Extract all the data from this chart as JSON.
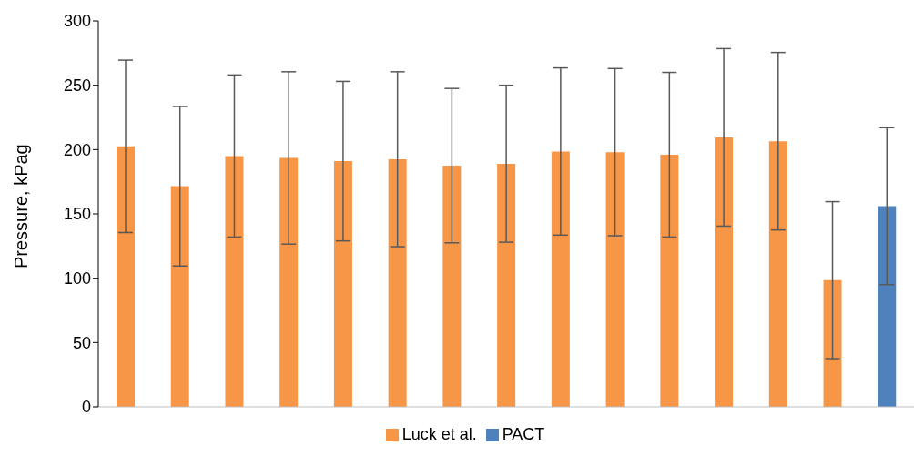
{
  "chart_data": {
    "type": "bar",
    "ylabel": "Pressure, kPag",
    "categories": [
      null,
      null,
      null,
      null,
      null,
      null,
      null,
      null,
      null,
      null,
      null,
      null,
      null,
      null,
      null
    ],
    "series": [
      {
        "name": "Luck et al.",
        "color": "#f79646",
        "values": [
          202.5,
          171.5,
          195,
          193.5,
          191,
          192.5,
          187.5,
          189,
          198.5,
          198,
          196,
          209.5,
          206.5,
          98.5,
          null
        ],
        "errors": [
          67,
          62,
          63,
          67,
          62,
          68,
          60,
          61,
          65,
          65,
          64,
          69,
          69,
          61,
          null
        ]
      },
      {
        "name": "PACT",
        "color": "#4f81bd",
        "values": [
          null,
          null,
          null,
          null,
          null,
          null,
          null,
          null,
          null,
          null,
          null,
          null,
          null,
          null,
          156
        ],
        "errors": [
          null,
          null,
          null,
          null,
          null,
          null,
          null,
          null,
          null,
          null,
          null,
          null,
          null,
          null,
          61
        ]
      }
    ],
    "ylim": [
      0,
      300
    ],
    "yticks": [
      0,
      50,
      100,
      150,
      200,
      250,
      300
    ],
    "grid": false,
    "legend": "bottom",
    "tick_labels": "y"
  }
}
